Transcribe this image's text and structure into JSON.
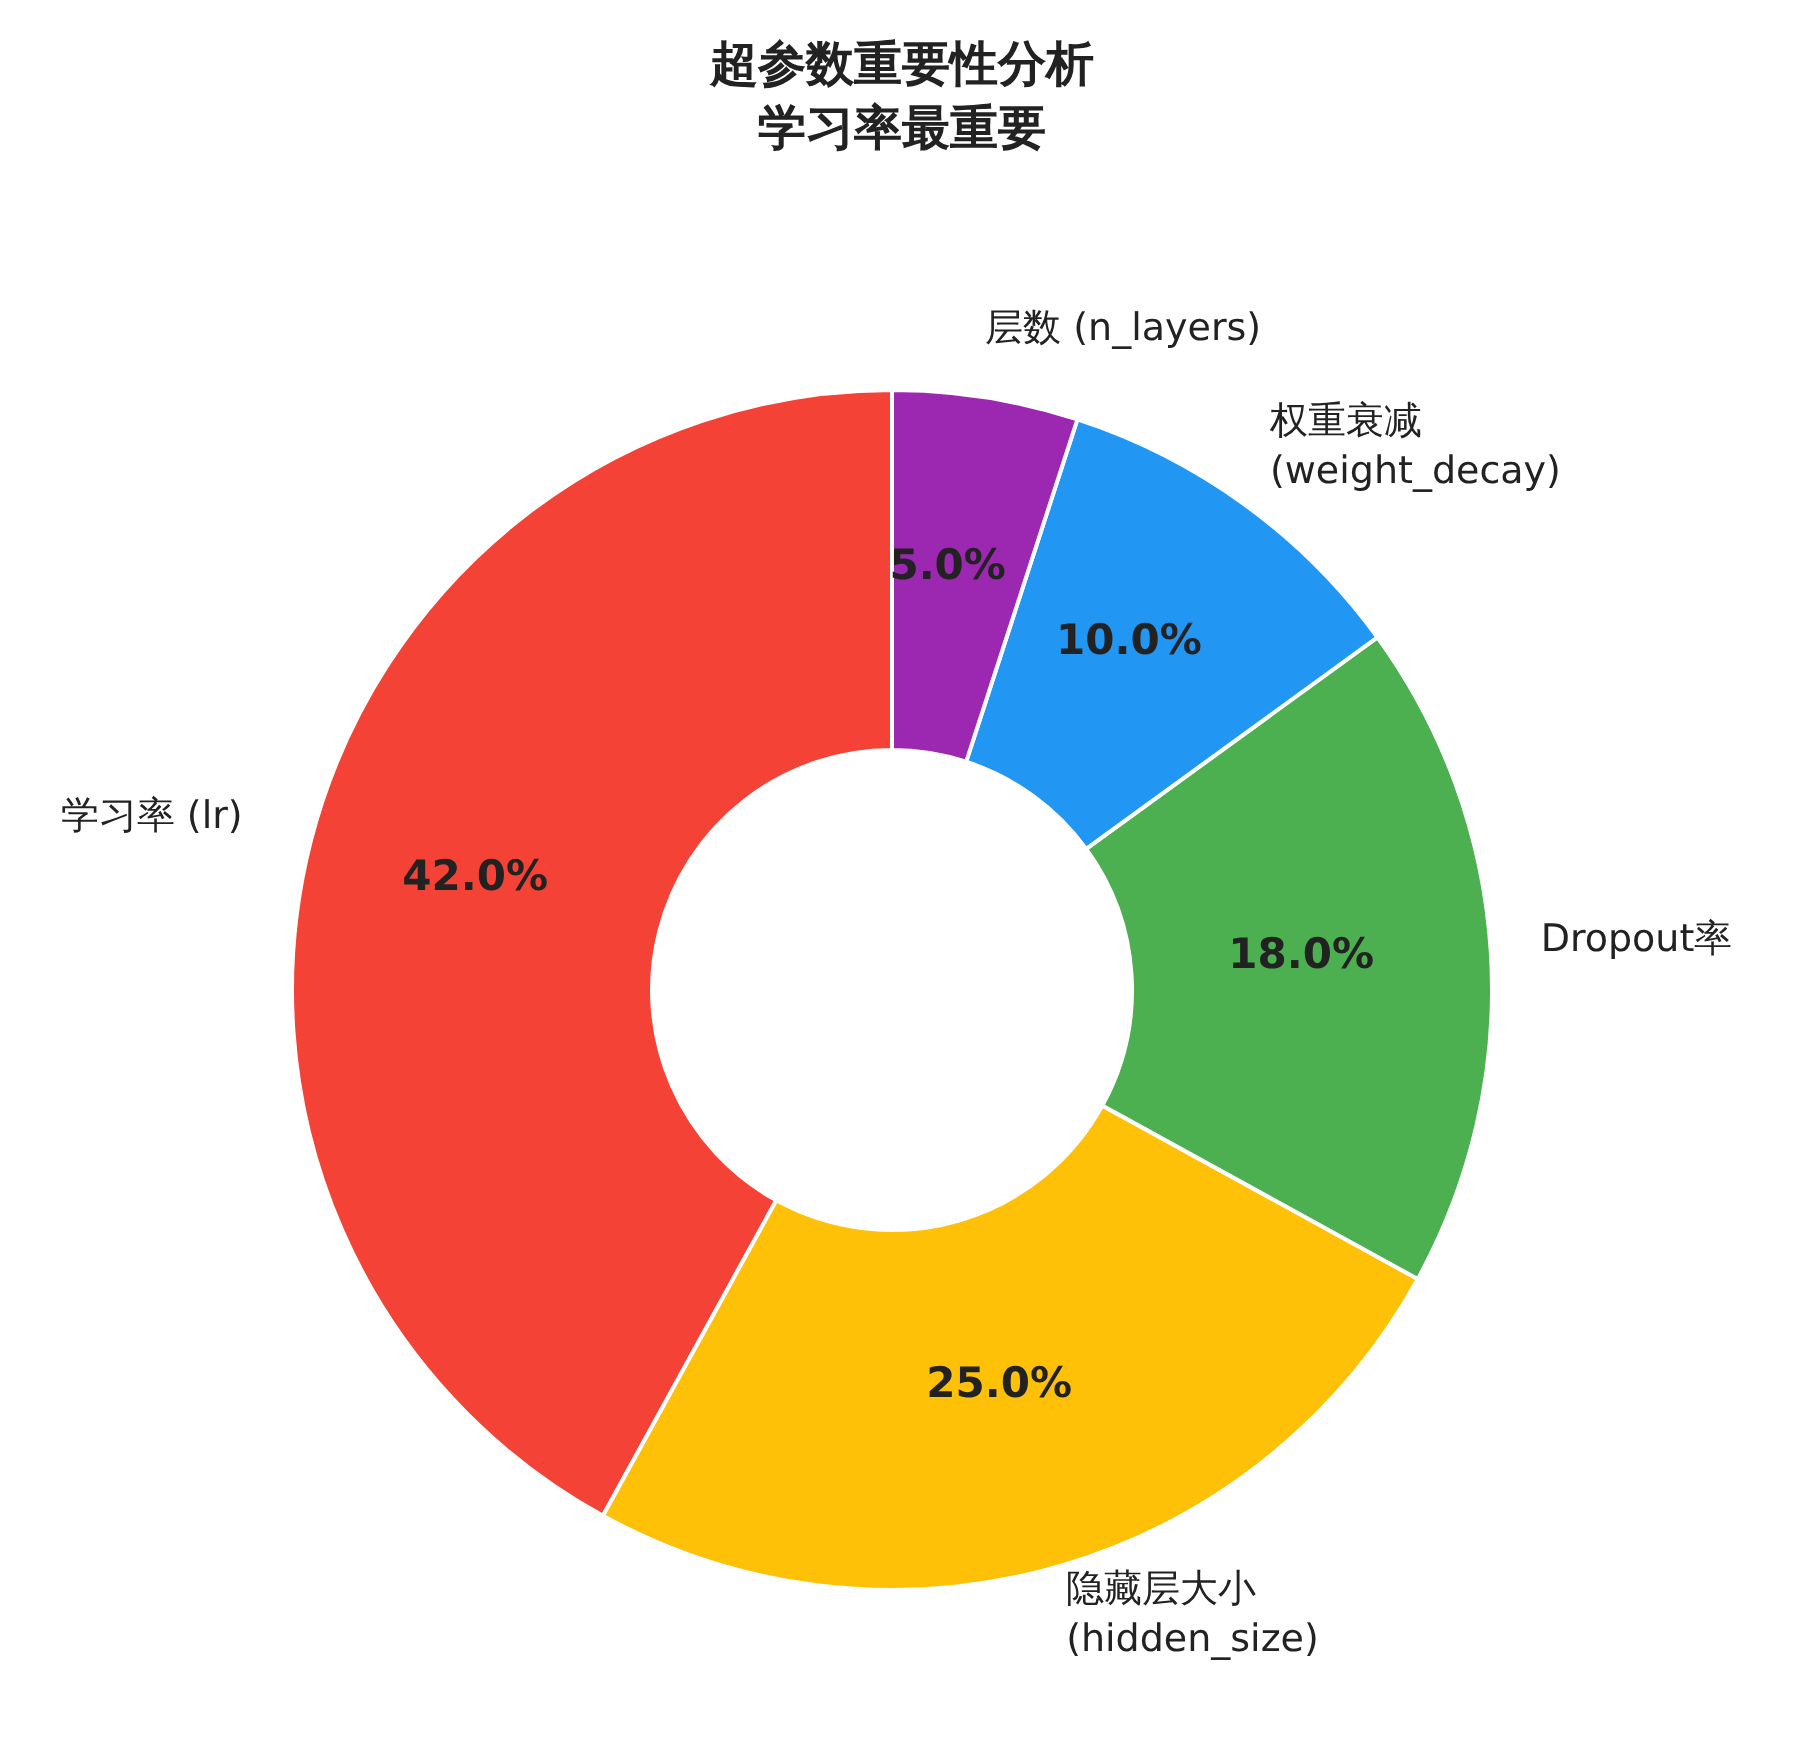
{
  "chart_data": {
    "type": "donut",
    "title": "超参数重要性分析",
    "subtitle": "学习率最重要",
    "categories": [
      "学习率 (lr)",
      "隐藏层大小\n(hidden_size)",
      "Dropout率",
      "权重衰减\n(weight_decay)",
      "层数 (n_layers)"
    ],
    "values": [
      42,
      25,
      18,
      10,
      5
    ],
    "value_labels": [
      "42.0%",
      "25.0%",
      "18.0%",
      "10.0%",
      "5.0%"
    ],
    "colors": [
      "#f44336",
      "#ffc107",
      "#4caf50",
      "#2196f3",
      "#9c27b0"
    ]
  }
}
